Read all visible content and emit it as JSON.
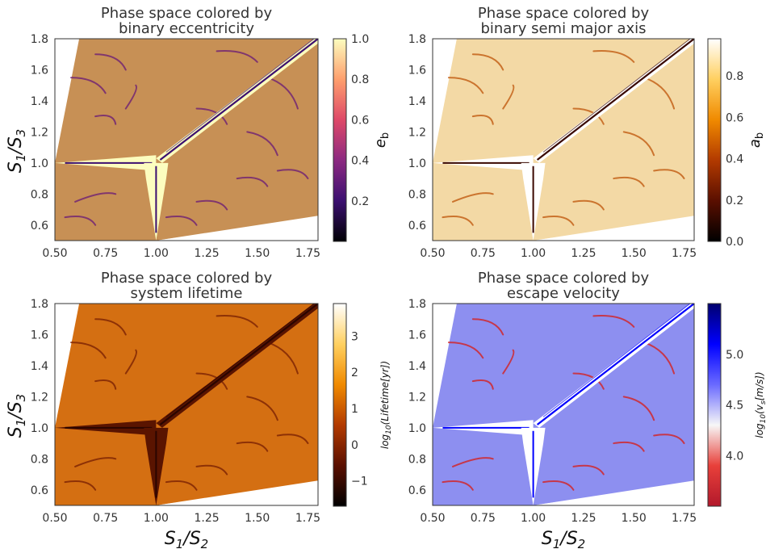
{
  "chart_data": [
    {
      "type": "heatmap",
      "title": "Phase space colored by\nbinary eccentricity",
      "xlabel": "",
      "ylabel": "S1/S3",
      "xlim": [
        0.5,
        1.8
      ],
      "ylim": [
        0.5,
        1.8
      ],
      "xticks": [
        "0.50",
        "0.75",
        "1.00",
        "1.25",
        "1.50",
        "1.75"
      ],
      "yticks": [
        "0.6",
        "0.8",
        "1.0",
        "1.2",
        "1.4",
        "1.6",
        "1.8"
      ],
      "colorbar": {
        "label": "e_b",
        "range": [
          0.0,
          1.0
        ],
        "ticks": [
          "0.2",
          "0.4",
          "0.6",
          "0.8",
          "1.0"
        ],
        "cmap": [
          "#000004",
          "#3b0f70",
          "#8c2981",
          "#de4968",
          "#fe9f6d",
          "#fcfdbf"
        ]
      }
    },
    {
      "type": "heatmap",
      "title": "Phase space colored by\nbinary semi major axis",
      "xlabel": "",
      "ylabel": "",
      "xlim": [
        0.5,
        1.8
      ],
      "ylim": [
        0.5,
        1.8
      ],
      "xticks": [
        "0.50",
        "0.75",
        "1.00",
        "1.25",
        "1.50",
        "1.75"
      ],
      "yticks": [
        "0.6",
        "0.8",
        "1.0",
        "1.2",
        "1.4",
        "1.6",
        "1.8"
      ],
      "colorbar": {
        "label": "a_b",
        "range": [
          0.0,
          0.98
        ],
        "ticks": [
          "0.0",
          "0.2",
          "0.4",
          "0.6",
          "0.8"
        ],
        "cmap": [
          "#000000",
          "#5a0f00",
          "#b23a00",
          "#f08a00",
          "#ffd060",
          "#ffffff"
        ]
      }
    },
    {
      "type": "heatmap",
      "title": "Phase space colored by\nsystem lifetime",
      "xlabel": "S1/S2",
      "ylabel": "S1/S3",
      "xlim": [
        0.5,
        1.8
      ],
      "ylim": [
        0.5,
        1.8
      ],
      "xticks": [
        "0.50",
        "0.75",
        "1.00",
        "1.25",
        "1.50",
        "1.75"
      ],
      "yticks": [
        "0.6",
        "0.8",
        "1.0",
        "1.2",
        "1.4",
        "1.6",
        "1.8"
      ],
      "colorbar": {
        "label": "log10(Lifetime[yr])",
        "range": [
          -1.7,
          3.9
        ],
        "ticks": [
          "−1",
          "0",
          "1",
          "2",
          "3"
        ],
        "cmap": [
          "#000000",
          "#5a0f00",
          "#b23a00",
          "#f08a00",
          "#ffd060",
          "#ffffff"
        ]
      }
    },
    {
      "type": "heatmap",
      "title": "Phase space colored by\nescape velocity",
      "xlabel": "S1/S2",
      "ylabel": "",
      "xlim": [
        0.5,
        1.8
      ],
      "ylim": [
        0.5,
        1.8
      ],
      "xticks": [
        "0.50",
        "0.75",
        "1.00",
        "1.25",
        "1.50",
        "1.75"
      ],
      "yticks": [
        "0.6",
        "0.8",
        "1.0",
        "1.2",
        "1.4",
        "1.6",
        "1.8"
      ],
      "colorbar": {
        "label": "log10(vs[m/s])",
        "range": [
          3.5,
          5.5
        ],
        "ticks": [
          "4.0",
          "4.5",
          "5.0"
        ],
        "cmap": [
          "#b2182b",
          "#e8403a",
          "#f7f7f7",
          "#6a6aff",
          "#0000ff",
          "#00006e"
        ]
      }
    }
  ],
  "panels": [
    {
      "title_line1": "Phase space colored by",
      "title_line2": "binary eccentricity",
      "base": "#c79055",
      "ridge": "#fcfdbf",
      "core": "#3b0f70",
      "streak": "#6e1f74"
    },
    {
      "title_line1": "Phase space colored by",
      "title_line2": "binary semi major axis",
      "base": "#f3d9a5",
      "ridge": "#ffffff",
      "core": "#3a0800",
      "streak": "#c15a10"
    },
    {
      "title_line1": "Phase space colored by",
      "title_line2": "system lifetime",
      "base": "#d46f12",
      "ridge": "#5a1400",
      "core": "#2a0500",
      "streak": "#7a2204"
    },
    {
      "title_line1": "Phase space colored by",
      "title_line2": "escape velocity",
      "base": "#8d8ff0",
      "ridge": "#ffffff",
      "core": "#0000ff",
      "streak": "#d52020"
    }
  ],
  "xlabel_text": "S1/S2",
  "ylabel_text": "S1/S3"
}
